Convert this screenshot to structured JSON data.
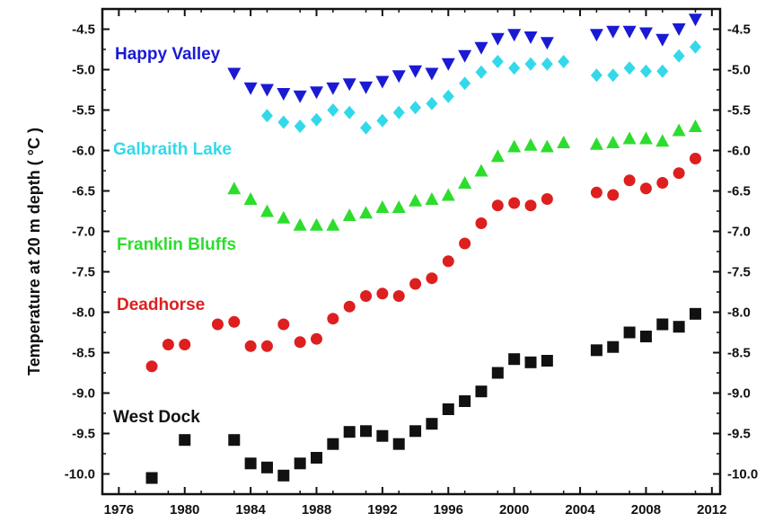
{
  "chart_data": {
    "type": "scatter",
    "title": "",
    "xlabel": "",
    "ylabel": "Temperature at 20 m depth ( °C )",
    "xlim": [
      1975,
      2012.5
    ],
    "ylim": [
      -10.25,
      -4.25
    ],
    "x_ticks": [
      "1976",
      "1980",
      "1984",
      "1988",
      "1992",
      "1996",
      "2000",
      "2004",
      "2008",
      "2012"
    ],
    "y_ticks": [
      "-4.5",
      "-5.0",
      "-5.5",
      "-6.0",
      "-6.5",
      "-7.0",
      "-7.5",
      "-8.0",
      "-8.5",
      "-9.0",
      "-9.5",
      "-10.0"
    ],
    "grid": false,
    "series": [
      {
        "name": "Happy Valley",
        "marker": "triangle-down",
        "color": "#1a1ad4",
        "points": [
          [
            1983,
            -5.05
          ],
          [
            1984,
            -5.23
          ],
          [
            1985,
            -5.25
          ],
          [
            1986,
            -5.3
          ],
          [
            1987,
            -5.33
          ],
          [
            1988,
            -5.28
          ],
          [
            1989,
            -5.23
          ],
          [
            1990,
            -5.18
          ],
          [
            1991,
            -5.22
          ],
          [
            1992,
            -5.15
          ],
          [
            1993,
            -5.08
          ],
          [
            1994,
            -5.02
          ],
          [
            1995,
            -5.05
          ],
          [
            1996,
            -4.93
          ],
          [
            1997,
            -4.83
          ],
          [
            1998,
            -4.73
          ],
          [
            1999,
            -4.62
          ],
          [
            2000,
            -4.57
          ],
          [
            2001,
            -4.6
          ],
          [
            2002,
            -4.67
          ],
          [
            2005,
            -4.57
          ],
          [
            2006,
            -4.53
          ],
          [
            2007,
            -4.53
          ],
          [
            2008,
            -4.55
          ],
          [
            2009,
            -4.63
          ],
          [
            2010,
            -4.5
          ],
          [
            2011,
            -4.38
          ]
        ]
      },
      {
        "name": "Galbraith Lake",
        "marker": "diamond",
        "color": "#33d9ea",
        "points": [
          [
            1985,
            -5.57
          ],
          [
            1986,
            -5.65
          ],
          [
            1987,
            -5.7
          ],
          [
            1988,
            -5.62
          ],
          [
            1989,
            -5.5
          ],
          [
            1990,
            -5.53
          ],
          [
            1991,
            -5.72
          ],
          [
            1992,
            -5.63
          ],
          [
            1993,
            -5.53
          ],
          [
            1994,
            -5.47
          ],
          [
            1995,
            -5.42
          ],
          [
            1996,
            -5.33
          ],
          [
            1997,
            -5.17
          ],
          [
            1998,
            -5.03
          ],
          [
            1999,
            -4.9
          ],
          [
            2000,
            -4.98
          ],
          [
            2001,
            -4.93
          ],
          [
            2002,
            -4.93
          ],
          [
            2003,
            -4.9
          ],
          [
            2005,
            -5.07
          ],
          [
            2006,
            -5.07
          ],
          [
            2007,
            -4.98
          ],
          [
            2008,
            -5.02
          ],
          [
            2009,
            -5.02
          ],
          [
            2010,
            -4.83
          ],
          [
            2011,
            -4.72
          ]
        ]
      },
      {
        "name": "Franklin Bluffs",
        "marker": "triangle-up",
        "color": "#2ddd2d",
        "points": [
          [
            1983,
            -6.47
          ],
          [
            1984,
            -6.6
          ],
          [
            1985,
            -6.75
          ],
          [
            1986,
            -6.83
          ],
          [
            1987,
            -6.92
          ],
          [
            1988,
            -6.92
          ],
          [
            1989,
            -6.92
          ],
          [
            1990,
            -6.8
          ],
          [
            1991,
            -6.77
          ],
          [
            1992,
            -6.7
          ],
          [
            1993,
            -6.7
          ],
          [
            1994,
            -6.62
          ],
          [
            1995,
            -6.6
          ],
          [
            1996,
            -6.55
          ],
          [
            1997,
            -6.4
          ],
          [
            1998,
            -6.25
          ],
          [
            1999,
            -6.07
          ],
          [
            2000,
            -5.95
          ],
          [
            2001,
            -5.93
          ],
          [
            2002,
            -5.95
          ],
          [
            2003,
            -5.9
          ],
          [
            2005,
            -5.92
          ],
          [
            2006,
            -5.9
          ],
          [
            2007,
            -5.85
          ],
          [
            2008,
            -5.85
          ],
          [
            2009,
            -5.88
          ],
          [
            2010,
            -5.75
          ],
          [
            2011,
            -5.7
          ]
        ]
      },
      {
        "name": "Deadhorse",
        "marker": "circle",
        "color": "#de1f1f",
        "points": [
          [
            1978,
            -8.67
          ],
          [
            1979,
            -8.4
          ],
          [
            1980,
            -8.4
          ],
          [
            1982,
            -8.15
          ],
          [
            1983,
            -8.12
          ],
          [
            1984,
            -8.42
          ],
          [
            1985,
            -8.42
          ],
          [
            1986,
            -8.15
          ],
          [
            1987,
            -8.37
          ],
          [
            1988,
            -8.33
          ],
          [
            1989,
            -8.08
          ],
          [
            1990,
            -7.93
          ],
          [
            1991,
            -7.8
          ],
          [
            1992,
            -7.77
          ],
          [
            1993,
            -7.8
          ],
          [
            1994,
            -7.65
          ],
          [
            1995,
            -7.58
          ],
          [
            1996,
            -7.37
          ],
          [
            1997,
            -7.15
          ],
          [
            1998,
            -6.9
          ],
          [
            1999,
            -6.68
          ],
          [
            2000,
            -6.65
          ],
          [
            2001,
            -6.68
          ],
          [
            2002,
            -6.6
          ],
          [
            2005,
            -6.52
          ],
          [
            2006,
            -6.55
          ],
          [
            2007,
            -6.37
          ],
          [
            2008,
            -6.47
          ],
          [
            2009,
            -6.4
          ],
          [
            2010,
            -6.28
          ],
          [
            2011,
            -6.1
          ]
        ]
      },
      {
        "name": "West Dock",
        "marker": "square",
        "color": "#111111",
        "points": [
          [
            1978,
            -10.05
          ],
          [
            1980,
            -9.58
          ],
          [
            1983,
            -9.58
          ],
          [
            1984,
            -9.87
          ],
          [
            1985,
            -9.92
          ],
          [
            1986,
            -10.02
          ],
          [
            1987,
            -9.87
          ],
          [
            1988,
            -9.8
          ],
          [
            1989,
            -9.63
          ],
          [
            1990,
            -9.48
          ],
          [
            1991,
            -9.47
          ],
          [
            1992,
            -9.53
          ],
          [
            1993,
            -9.63
          ],
          [
            1994,
            -9.47
          ],
          [
            1995,
            -9.38
          ],
          [
            1996,
            -9.2
          ],
          [
            1997,
            -9.1
          ],
          [
            1998,
            -8.98
          ],
          [
            1999,
            -8.75
          ],
          [
            2000,
            -8.58
          ],
          [
            2001,
            -8.62
          ],
          [
            2002,
            -8.6
          ],
          [
            2005,
            -8.47
          ],
          [
            2006,
            -8.43
          ],
          [
            2007,
            -8.25
          ],
          [
            2008,
            -8.3
          ],
          [
            2009,
            -8.15
          ],
          [
            2010,
            -8.18
          ],
          [
            2011,
            -8.02
          ]
        ]
      }
    ]
  }
}
